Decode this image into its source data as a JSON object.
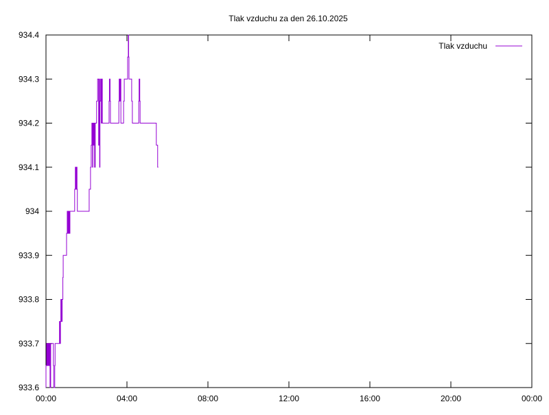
{
  "chart_data": {
    "type": "line",
    "title": "Tlak vzduchu za den 26.10.2025",
    "xlabel": "",
    "ylabel": "",
    "xlim": [
      "00:00",
      "24:00"
    ],
    "ylim": [
      933.6,
      934.4
    ],
    "grid": false,
    "legend_position": "top-right",
    "x_tick_labels": [
      "00:00",
      "04:00",
      "08:00",
      "12:00",
      "16:00",
      "20:00",
      "00:00"
    ],
    "y_tick_labels": [
      "933.6",
      "933.7",
      "933.8",
      "933.9",
      "934",
      "934.1",
      "934.2",
      "934.3",
      "934.4"
    ],
    "series": [
      {
        "name": "Tlak vzduchu",
        "color": "#9400d3",
        "style": "steps",
        "points": [
          [
            "00:00",
            933.65
          ],
          [
            "00:02",
            933.7
          ],
          [
            "00:04",
            933.65
          ],
          [
            "00:06",
            933.7
          ],
          [
            "00:08",
            933.65
          ],
          [
            "00:10",
            933.7
          ],
          [
            "00:12",
            933.6
          ],
          [
            "00:14",
            933.7
          ],
          [
            "00:22",
            933.65
          ],
          [
            "00:23",
            933.6
          ],
          [
            "00:26",
            933.65
          ],
          [
            "00:27",
            933.7
          ],
          [
            "00:40",
            933.75
          ],
          [
            "00:42",
            933.7
          ],
          [
            "00:43",
            933.75
          ],
          [
            "00:44",
            933.8
          ],
          [
            "00:46",
            933.75
          ],
          [
            "00:48",
            933.8
          ],
          [
            "00:50",
            933.85
          ],
          [
            "00:51",
            933.9
          ],
          [
            "01:01",
            933.95
          ],
          [
            "01:03",
            934.0
          ],
          [
            "01:05",
            933.95
          ],
          [
            "01:07",
            934.0
          ],
          [
            "01:09",
            933.95
          ],
          [
            "01:11",
            934.0
          ],
          [
            "01:25",
            934.05
          ],
          [
            "01:27",
            934.1
          ],
          [
            "01:29",
            934.05
          ],
          [
            "01:30",
            934.1
          ],
          [
            "01:32",
            934.05
          ],
          [
            "01:33",
            934.0
          ],
          [
            "02:08",
            934.05
          ],
          [
            "02:12",
            934.1
          ],
          [
            "02:14",
            934.15
          ],
          [
            "02:16",
            934.2
          ],
          [
            "02:18",
            934.1
          ],
          [
            "02:19",
            934.2
          ],
          [
            "02:21",
            934.15
          ],
          [
            "02:22",
            934.2
          ],
          [
            "02:24",
            934.1
          ],
          [
            "02:26",
            934.2
          ],
          [
            "02:30",
            934.25
          ],
          [
            "02:33",
            934.3
          ],
          [
            "02:36",
            934.15
          ],
          [
            "02:37",
            934.3
          ],
          [
            "02:39",
            934.1
          ],
          [
            "02:40",
            934.25
          ],
          [
            "02:42",
            934.3
          ],
          [
            "02:44",
            934.2
          ],
          [
            "02:45",
            934.3
          ],
          [
            "02:47",
            934.2
          ],
          [
            "03:07",
            934.25
          ],
          [
            "03:08",
            934.3
          ],
          [
            "03:10",
            934.25
          ],
          [
            "03:11",
            934.2
          ],
          [
            "03:36",
            934.25
          ],
          [
            "03:37",
            934.3
          ],
          [
            "03:39",
            934.25
          ],
          [
            "03:40",
            934.3
          ],
          [
            "03:42",
            934.2
          ],
          [
            "03:50",
            934.25
          ],
          [
            "03:52",
            934.3
          ],
          [
            "04:02",
            934.35
          ],
          [
            "04:04",
            934.4
          ],
          [
            "04:05",
            934.35
          ],
          [
            "04:06",
            934.3
          ],
          [
            "04:14",
            934.25
          ],
          [
            "04:16",
            934.2
          ],
          [
            "04:35",
            934.25
          ],
          [
            "04:36",
            934.3
          ],
          [
            "04:38",
            934.25
          ],
          [
            "04:39",
            934.2
          ],
          [
            "05:27",
            934.15
          ],
          [
            "05:31",
            934.1
          ]
        ]
      }
    ]
  }
}
